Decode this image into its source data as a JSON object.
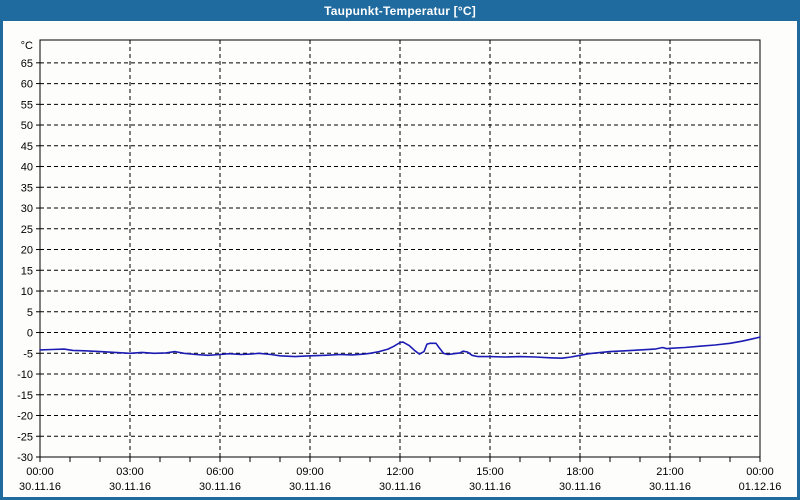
{
  "window": {
    "title": "Taupunkt-Temperatur [°C]",
    "titlebar_color": "#1f6a9e",
    "content_background": "#fdfefc"
  },
  "chart_data": {
    "type": "line",
    "title": "Taupunkt-Temperatur [°C]",
    "y_unit": "°C",
    "ylim": [
      -30,
      70.5
    ],
    "yticks": [
      -30,
      -25,
      -20,
      -15,
      -10,
      -5,
      0,
      5,
      10,
      15,
      20,
      25,
      30,
      35,
      40,
      45,
      50,
      55,
      60,
      65
    ],
    "xlim_hours": [
      0,
      24
    ],
    "x_major_ticks": [
      {
        "hour": 0,
        "time": "00:00",
        "date": "30.11.16"
      },
      {
        "hour": 3,
        "time": "03:00",
        "date": "30.11.16"
      },
      {
        "hour": 6,
        "time": "06:00",
        "date": "30.11.16"
      },
      {
        "hour": 9,
        "time": "09:00",
        "date": "30.11.16"
      },
      {
        "hour": 12,
        "time": "12:00",
        "date": "30.11.16"
      },
      {
        "hour": 15,
        "time": "15:00",
        "date": "30.11.16"
      },
      {
        "hour": 18,
        "time": "18:00",
        "date": "30.11.16"
      },
      {
        "hour": 21,
        "time": "21:00",
        "date": "30.11.16"
      },
      {
        "hour": 24,
        "time": "00:00",
        "date": "01.12.16"
      }
    ],
    "x_minor_tick_every_hours": 1,
    "grid": "dashed",
    "line_color": "#1c1cb4",
    "axis_color": "#000000",
    "series": [
      {
        "name": "Taupunkt-Temperatur",
        "points": [
          [
            0.0,
            -4.2
          ],
          [
            0.4,
            -4.1
          ],
          [
            0.8,
            -4.0
          ],
          [
            1.1,
            -4.3
          ],
          [
            1.5,
            -4.4
          ],
          [
            2.0,
            -4.6
          ],
          [
            2.5,
            -4.8
          ],
          [
            3.0,
            -5.0
          ],
          [
            3.4,
            -4.8
          ],
          [
            3.8,
            -5.0
          ],
          [
            4.2,
            -4.9
          ],
          [
            4.5,
            -4.6
          ],
          [
            4.8,
            -5.0
          ],
          [
            5.2,
            -5.3
          ],
          [
            5.6,
            -5.5
          ],
          [
            6.0,
            -5.3
          ],
          [
            6.3,
            -5.1
          ],
          [
            6.7,
            -5.3
          ],
          [
            7.0,
            -5.2
          ],
          [
            7.3,
            -5.0
          ],
          [
            7.7,
            -5.3
          ],
          [
            8.0,
            -5.6
          ],
          [
            8.5,
            -5.8
          ],
          [
            9.0,
            -5.6
          ],
          [
            9.5,
            -5.5
          ],
          [
            10.0,
            -5.3
          ],
          [
            10.4,
            -5.4
          ],
          [
            10.8,
            -5.2
          ],
          [
            11.0,
            -5.0
          ],
          [
            11.3,
            -4.6
          ],
          [
            11.6,
            -4.0
          ],
          [
            11.8,
            -3.3
          ],
          [
            12.0,
            -2.4
          ],
          [
            12.1,
            -2.3
          ],
          [
            12.3,
            -3.1
          ],
          [
            12.5,
            -4.4
          ],
          [
            12.65,
            -5.2
          ],
          [
            12.8,
            -4.6
          ],
          [
            12.9,
            -2.8
          ],
          [
            13.0,
            -2.6
          ],
          [
            13.2,
            -2.6
          ],
          [
            13.3,
            -3.6
          ],
          [
            13.45,
            -5.0
          ],
          [
            13.6,
            -5.3
          ],
          [
            13.8,
            -5.1
          ],
          [
            14.0,
            -4.9
          ],
          [
            14.1,
            -4.5
          ],
          [
            14.25,
            -4.7
          ],
          [
            14.4,
            -5.5
          ],
          [
            14.6,
            -5.8
          ],
          [
            15.0,
            -5.8
          ],
          [
            15.5,
            -5.9
          ],
          [
            16.0,
            -5.8
          ],
          [
            16.5,
            -5.9
          ],
          [
            17.0,
            -6.1
          ],
          [
            17.4,
            -6.2
          ],
          [
            17.7,
            -5.9
          ],
          [
            18.0,
            -5.5
          ],
          [
            18.3,
            -5.1
          ],
          [
            18.7,
            -4.8
          ],
          [
            19.0,
            -4.6
          ],
          [
            19.5,
            -4.4
          ],
          [
            20.0,
            -4.2
          ],
          [
            20.5,
            -4.0
          ],
          [
            20.75,
            -3.6
          ],
          [
            20.9,
            -3.9
          ],
          [
            21.0,
            -3.8
          ],
          [
            21.5,
            -3.6
          ],
          [
            22.0,
            -3.3
          ],
          [
            22.5,
            -3.0
          ],
          [
            23.0,
            -2.6
          ],
          [
            23.4,
            -2.1
          ],
          [
            23.7,
            -1.6
          ],
          [
            24.0,
            -1.1
          ]
        ]
      }
    ]
  }
}
